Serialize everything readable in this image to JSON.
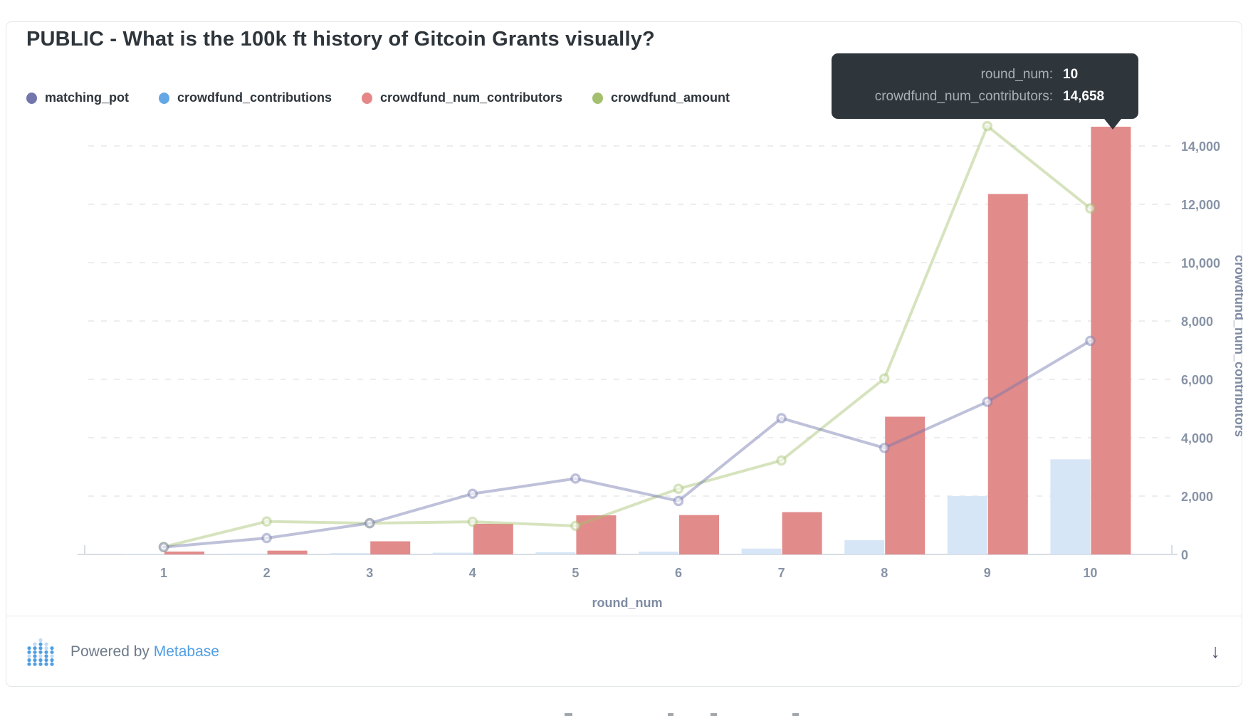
{
  "card": {
    "title": "PUBLIC - What is the 100k ft history of Gitcoin Grants visually?",
    "legend": [
      {
        "label": "matching_pot",
        "color": "#7276ad"
      },
      {
        "label": "crowdfund_contributions",
        "color": "#64a7e5"
      },
      {
        "label": "crowdfund_num_contributors",
        "color": "#e68787"
      },
      {
        "label": "crowdfund_amount",
        "color": "#a4c06e"
      }
    ],
    "tooltip": {
      "rows": [
        {
          "label": "round_num:",
          "value": "10"
        },
        {
          "label": "crowdfund_num_contributors:",
          "value": "14,658"
        }
      ]
    },
    "footer": {
      "powered_by": "Powered by",
      "brand": "Metabase",
      "download_icon": "↓"
    }
  },
  "chart_data": {
    "type": "combo (grouped bars + lines)",
    "title": "PUBLIC - What is the 100k ft history of Gitcoin Grants visually?",
    "xlabel": "round_num",
    "ylabel": "crowdfund_num_contributors",
    "categories": [
      1,
      2,
      3,
      4,
      5,
      6,
      7,
      8,
      9,
      10
    ],
    "series": [
      {
        "name": "matching_pot",
        "type": "line",
        "color": "#7276ad",
        "values": [
          250,
          560,
          1070,
          2080,
          2600,
          1830,
          4670,
          3650,
          5230,
          7320
        ]
      },
      {
        "name": "crowdfund_contributions",
        "type": "bar",
        "color": "#64a7e5",
        "values": [
          20,
          30,
          45,
          60,
          75,
          95,
          200,
          490,
          2000,
          3260
        ]
      },
      {
        "name": "crowdfund_num_contributors",
        "type": "bar",
        "color": "#e68787",
        "values": [
          100,
          130,
          450,
          1050,
          1340,
          1350,
          1450,
          4720,
          12350,
          14658
        ]
      },
      {
        "name": "crowdfund_amount",
        "type": "line",
        "color": "#a4c06e",
        "values": [
          260,
          1130,
          1070,
          1120,
          980,
          2250,
          3220,
          6030,
          14680,
          11860
        ]
      }
    ],
    "highlighted_point": {
      "series": "crowdfund_num_contributors",
      "round_num": 10,
      "value": "14,658"
    },
    "y_ticks": [
      0,
      2000,
      4000,
      6000,
      8000,
      10000,
      12000,
      14000
    ],
    "y_tick_labels": [
      "0",
      "2,000",
      "4,000",
      "6,000",
      "8,000",
      "10,000",
      "12,000",
      "14,000"
    ],
    "ylim": [
      0,
      15100
    ],
    "grid": "horizontal dashed",
    "legend_position": "top-left",
    "note": "line-series values are read against the visible right-hand crowdfund_num_contributors axis"
  }
}
